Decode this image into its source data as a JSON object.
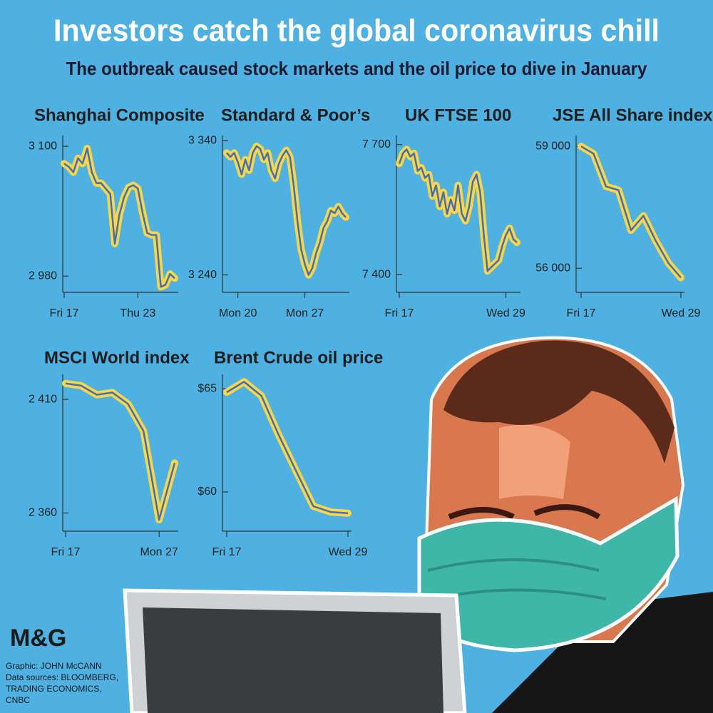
{
  "header": {
    "title": "Investors catch the global coronavirus chill",
    "subtitle": "The outbreak caused stock markets and the oil price to dive in January"
  },
  "chart_data": [
    {
      "type": "line",
      "title": "Shanghai Composite",
      "categories": [
        "Fri 17",
        null,
        null,
        null,
        null,
        null,
        null,
        null,
        null,
        null,
        null,
        null,
        null,
        null,
        null,
        null,
        "Thu 23",
        null,
        null,
        null,
        null,
        null,
        null,
        null,
        null
      ],
      "values": [
        3084,
        3081,
        3076,
        3089,
        3084,
        3098,
        3076,
        3066,
        3066,
        3061,
        3056,
        3010,
        3037,
        3053,
        3062,
        3064,
        3061,
        3039,
        3020,
        3018,
        3018,
        2970,
        2972,
        2982,
        2978
      ],
      "ylim": [
        2965,
        3110
      ],
      "yticks": [
        {
          "value": 3100,
          "label": "3 100"
        },
        {
          "value": 2980,
          "label": "2 980"
        }
      ],
      "color": "#4a6db0",
      "outline_color": "#f7d74a"
    },
    {
      "type": "line",
      "title": "Standard & Poor’s",
      "categories": [
        null,
        null,
        null,
        "Mon 20",
        null,
        null,
        null,
        null,
        null,
        null,
        null,
        null,
        null,
        null,
        null,
        null,
        null,
        null,
        null,
        null,
        null,
        "Mon 27",
        null,
        null,
        null,
        null,
        null,
        null,
        null,
        null,
        null,
        null,
        null
      ],
      "values": [
        3331,
        3328,
        3331,
        3324,
        3315,
        3326,
        3318,
        3331,
        3336,
        3334,
        3326,
        3331,
        3318,
        3312,
        3323,
        3329,
        3333,
        3328,
        3307,
        3280,
        3259,
        3248,
        3240,
        3245,
        3256,
        3264,
        3275,
        3280,
        3288,
        3286,
        3291,
        3286,
        3283
      ],
      "ylim": [
        3227,
        3344
      ],
      "yticks": [
        {
          "value": 3340,
          "label": "3 340"
        },
        {
          "value": 3240,
          "label": "3 240"
        }
      ],
      "color": "#4a6db0",
      "outline_color": "#f7d74a"
    },
    {
      "type": "line",
      "title": "UK FTSE 100",
      "categories": [
        "Fri 17",
        null,
        null,
        null,
        null,
        null,
        null,
        null,
        null,
        null,
        null,
        null,
        null,
        null,
        null,
        null,
        null,
        null,
        null,
        null,
        null,
        null,
        null,
        null,
        null,
        null,
        null,
        null,
        null,
        "Wed 29",
        null,
        null,
        null
      ],
      "values": [
        7656,
        7680,
        7689,
        7672,
        7680,
        7639,
        7647,
        7623,
        7631,
        7581,
        7606,
        7557,
        7590,
        7540,
        7573,
        7548,
        7606,
        7540,
        7524,
        7557,
        7614,
        7631,
        7590,
        7491,
        7408,
        7417,
        7425,
        7433,
        7466,
        7491,
        7507,
        7482,
        7474
      ],
      "ylim": [
        7359,
        7721
      ],
      "yticks": [
        {
          "value": 7700,
          "label": "7 700"
        },
        {
          "value": 7400,
          "label": "7 400"
        }
      ],
      "color": "#4a6db0",
      "outline_color": "#f7d74a"
    },
    {
      "type": "line",
      "title": "JSE All Share index",
      "categories": [
        "Fri 17",
        null,
        null,
        null,
        null,
        null,
        null,
        null,
        "Wed 29"
      ],
      "values": [
        59000,
        58820,
        58012,
        57922,
        56934,
        57293,
        56665,
        56126,
        55767
      ],
      "ylim": [
        55407,
        59269
      ],
      "yticks": [
        {
          "value": 59000,
          "label": "59 000"
        },
        {
          "value": 56000,
          "label": "56 000"
        }
      ],
      "color": "#4a6db0",
      "outline_color": "#f7d74a"
    },
    {
      "type": "line",
      "title": "MSCI World index",
      "categories": [
        "Fri 17",
        null,
        null,
        null,
        null,
        null,
        "Mon 27",
        null
      ],
      "values": [
        2417,
        2416,
        2412,
        2413,
        2408,
        2396,
        2357,
        2382
      ],
      "ylim": [
        2352,
        2421
      ],
      "yticks": [
        {
          "value": 2410,
          "label": "2 410"
        },
        {
          "value": 2360,
          "label": "2 360"
        }
      ],
      "color": "#4a6db0",
      "outline_color": "#f7d74a"
    },
    {
      "type": "line",
      "title": "Brent Crude oil price",
      "categories": [
        "Fri 17",
        null,
        null,
        null,
        null,
        null,
        null,
        "Wed 29"
      ],
      "values": [
        64.83,
        65.34,
        64.66,
        62.76,
        61.03,
        59.31,
        59.03,
        58.97
      ],
      "ylim": [
        58.1,
        65.7
      ],
      "yticks": [
        {
          "value": 65,
          "label": "$65"
        },
        {
          "value": 60,
          "label": "$60"
        }
      ],
      "color": "#4a6db0",
      "outline_color": "#f7d74a"
    }
  ],
  "credits": {
    "logo": "M&G",
    "lines": [
      "Graphic: JOHN McCANN",
      "Data sources: BLOOMBERG,",
      "TRADING ECONOMICS,",
      "CNBC"
    ]
  }
}
